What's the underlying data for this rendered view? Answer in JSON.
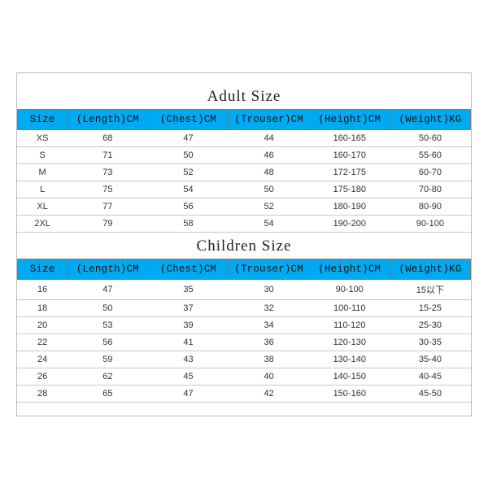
{
  "adult": {
    "title": "Adult Size",
    "columns": [
      "Size",
      "(Length)CM",
      "(Chest)CM",
      "(Trouser)CM",
      "(Height)CM",
      "(Weight)KG"
    ],
    "rows": [
      [
        "XS",
        "68",
        "47",
        "44",
        "160-165",
        "50-60"
      ],
      [
        "S",
        "71",
        "50",
        "46",
        "160-170",
        "55-60"
      ],
      [
        "M",
        "73",
        "52",
        "48",
        "172-175",
        "60-70"
      ],
      [
        "L",
        "75",
        "54",
        "50",
        "175-180",
        "70-80"
      ],
      [
        "XL",
        "77",
        "56",
        "52",
        "180-190",
        "80-90"
      ],
      [
        "2XL",
        "79",
        "58",
        "54",
        "190-200",
        "90-100"
      ]
    ]
  },
  "children": {
    "title": "Children Size",
    "columns": [
      "Size",
      "(Length)CM",
      "(Chest)CM",
      "(Trouser)CM",
      "(Height)CM",
      "(Weight)KG"
    ],
    "rows": [
      [
        "16",
        "47",
        "35",
        "30",
        "90-100",
        "15以下"
      ],
      [
        "18",
        "50",
        "37",
        "32",
        "100-110",
        "15-25"
      ],
      [
        "20",
        "53",
        "39",
        "34",
        "110-120",
        "25-30"
      ],
      [
        "22",
        "56",
        "41",
        "36",
        "120-130",
        "30-35"
      ],
      [
        "24",
        "59",
        "43",
        "38",
        "130-140",
        "35-40"
      ],
      [
        "26",
        "62",
        "45",
        "40",
        "140-150",
        "40-45"
      ],
      [
        "28",
        "65",
        "47",
        "42",
        "150-160",
        "45-50"
      ]
    ]
  },
  "style": {
    "header_bg": "#00aaf2",
    "header_border": "#7a7a7a",
    "row_border": "#c9c9c9",
    "frame_border": "#bdbdbd",
    "title_fontsize": 19,
    "header_fontsize": 12.5,
    "cell_fontsize": 11,
    "col_widths_pct": [
      11,
      17.8,
      17.8,
      17.8,
      17.8,
      17.8
    ]
  }
}
